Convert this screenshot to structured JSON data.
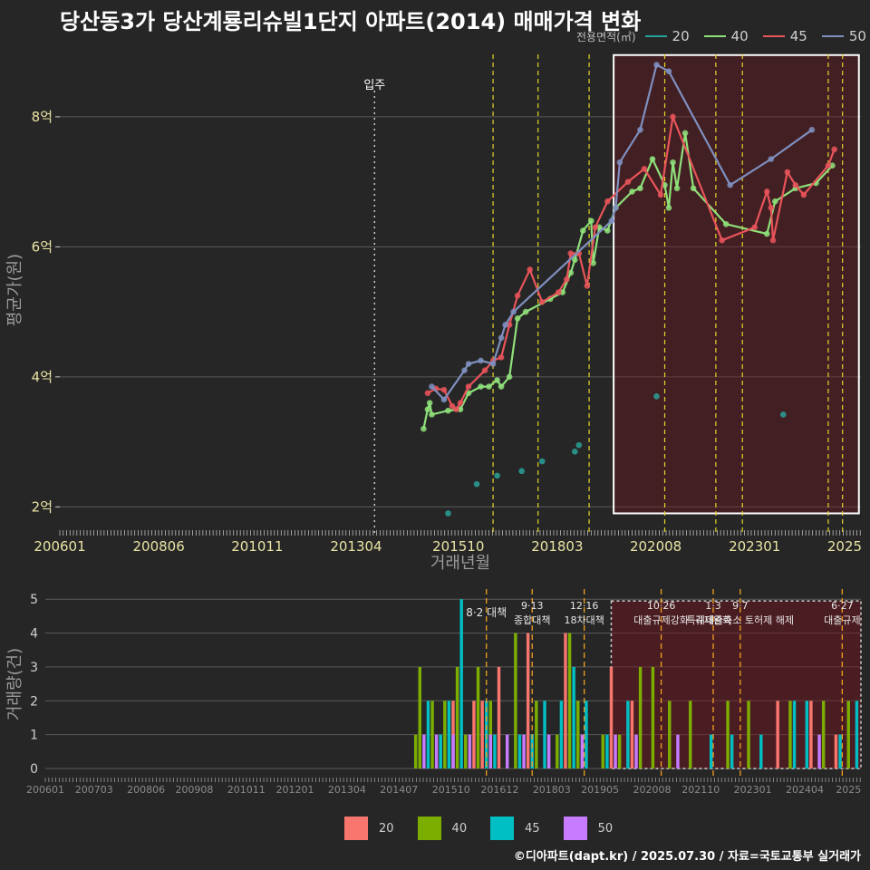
{
  "title": "당산동3가 당산계룡리슈빌1단지 아파트(2014) 매매가격 변화",
  "footer": "©디아파트(dapt.kr) / 2025.07.30 / 자료=국토교통부 실거래가",
  "legend_price": {
    "title": "전용면적(㎡)",
    "items": [
      {
        "label": "20",
        "color": "#2aa198"
      },
      {
        "label": "40",
        "color": "#8fe07a"
      },
      {
        "label": "45",
        "color": "#e8545a"
      },
      {
        "label": "50",
        "color": "#7f8fbf"
      }
    ]
  },
  "legend_volume": {
    "items": [
      {
        "label": "20",
        "color": "#f8766d"
      },
      {
        "label": "40",
        "color": "#7cae00"
      },
      {
        "label": "45",
        "color": "#00bfc4"
      },
      {
        "label": "50",
        "color": "#c77cff"
      }
    ]
  },
  "chart_data": [
    {
      "type": "line",
      "title": "당산동3가 당산계룡리슈빌1단지 아파트(2014) 매매가격 변화",
      "xlabel": "거래년월",
      "ylabel": "평균가(원)",
      "x_ticks": [
        "200601",
        "200806",
        "201011",
        "201304",
        "201510",
        "201803",
        "202008",
        "202301",
        "2025"
      ],
      "y_ticks": [
        {
          "v": 2,
          "label": "2억"
        },
        {
          "v": 4,
          "label": "4억"
        },
        {
          "v": 6,
          "label": "6억"
        },
        {
          "v": 8,
          "label": "8억"
        }
      ],
      "ylim": [
        1.6,
        9.1
      ],
      "xlim": [
        2006.0,
        2025.6
      ],
      "move_in": {
        "x": 2013.7,
        "label": "입주"
      },
      "policy_lines": [
        2016.6,
        2017.7,
        2018.95,
        2020.8,
        2022.05,
        2022.7,
        2024.8,
        2025.15
      ],
      "highlight": {
        "x0": 2019.55,
        "x1": 2025.55,
        "y0": 1.9,
        "y1": 8.95
      },
      "series": [
        {
          "name": "20",
          "points": [
            [
              2016.2,
              2.35
            ],
            [
              2016.7,
              2.48
            ],
            [
              2017.3,
              2.55
            ],
            [
              2017.8,
              2.7
            ],
            [
              2018.6,
              2.85
            ],
            [
              2018.7,
              2.95
            ],
            [
              2015.5,
              1.9
            ],
            [
              2020.6,
              3.7
            ],
            [
              2023.7,
              3.42
            ]
          ],
          "line": false
        },
        {
          "name": "40",
          "points": [
            [
              2014.9,
              3.2
            ],
            [
              2015.0,
              3.5
            ],
            [
              2015.05,
              3.6
            ],
            [
              2015.1,
              3.42
            ],
            [
              2015.5,
              3.48
            ],
            [
              2015.8,
              3.5
            ],
            [
              2016.0,
              3.75
            ],
            [
              2016.3,
              3.85
            ],
            [
              2016.5,
              3.85
            ],
            [
              2016.7,
              3.95
            ],
            [
              2016.8,
              3.85
            ],
            [
              2017.0,
              4.0
            ],
            [
              2017.2,
              4.9
            ],
            [
              2017.4,
              5.0
            ],
            [
              2018.0,
              5.2
            ],
            [
              2018.3,
              5.3
            ],
            [
              2018.5,
              5.6
            ],
            [
              2018.6,
              5.8
            ],
            [
              2018.8,
              6.25
            ],
            [
              2019.0,
              6.4
            ],
            [
              2019.05,
              5.75
            ],
            [
              2019.2,
              6.3
            ],
            [
              2019.4,
              6.25
            ],
            [
              2019.6,
              6.6
            ],
            [
              2020.0,
              6.85
            ],
            [
              2020.2,
              6.9
            ],
            [
              2020.5,
              7.35
            ],
            [
              2020.8,
              6.95
            ],
            [
              2021.0,
              7.3
            ],
            [
              2021.5,
              6.9
            ],
            [
              2022.3,
              6.35
            ],
            [
              2023.3,
              6.2
            ],
            [
              2023.5,
              6.7
            ],
            [
              2024.0,
              6.9
            ],
            [
              2024.5,
              6.98
            ],
            [
              2024.9,
              7.25
            ],
            [
              2020.9,
              6.6
            ],
            [
              2021.1,
              6.9
            ],
            [
              2021.3,
              7.75
            ]
          ],
          "line": true
        },
        {
          "name": "45",
          "points": [
            [
              2015.0,
              3.75
            ],
            [
              2015.2,
              3.82
            ],
            [
              2015.4,
              3.8
            ],
            [
              2015.6,
              3.55
            ],
            [
              2015.7,
              3.5
            ],
            [
              2015.8,
              3.6
            ],
            [
              2016.0,
              3.85
            ],
            [
              2016.4,
              4.1
            ],
            [
              2016.6,
              4.25
            ],
            [
              2016.8,
              4.3
            ],
            [
              2017.0,
              4.8
            ],
            [
              2017.2,
              5.25
            ],
            [
              2017.5,
              5.65
            ],
            [
              2017.8,
              5.15
            ],
            [
              2018.2,
              5.3
            ],
            [
              2018.4,
              5.5
            ],
            [
              2018.5,
              5.9
            ],
            [
              2018.7,
              5.9
            ],
            [
              2018.9,
              5.4
            ],
            [
              2019.1,
              6.3
            ],
            [
              2019.4,
              6.7
            ],
            [
              2019.9,
              7.0
            ],
            [
              2020.3,
              7.2
            ],
            [
              2020.7,
              6.8
            ],
            [
              2021.0,
              8.0
            ],
            [
              2022.2,
              6.1
            ],
            [
              2023.0,
              6.3
            ],
            [
              2023.3,
              6.85
            ],
            [
              2023.4,
              6.6
            ],
            [
              2023.8,
              7.15
            ],
            [
              2024.0,
              6.95
            ],
            [
              2024.2,
              6.8
            ],
            [
              2024.8,
              7.25
            ],
            [
              2024.95,
              7.5
            ],
            [
              2023.45,
              6.1
            ]
          ],
          "line": true
        },
        {
          "name": "50",
          "points": [
            [
              2015.1,
              3.85
            ],
            [
              2015.4,
              3.65
            ],
            [
              2015.9,
              4.1
            ],
            [
              2016.0,
              4.2
            ],
            [
              2016.3,
              4.25
            ],
            [
              2016.6,
              4.2
            ],
            [
              2016.8,
              4.6
            ],
            [
              2016.9,
              4.8
            ],
            [
              2017.1,
              5.0
            ],
            [
              2019.5,
              6.4
            ],
            [
              2019.6,
              6.6
            ],
            [
              2019.7,
              7.3
            ],
            [
              2020.2,
              7.8
            ],
            [
              2020.6,
              8.8
            ],
            [
              2020.9,
              8.7
            ],
            [
              2022.4,
              6.95
            ],
            [
              2023.4,
              7.35
            ],
            [
              2024.4,
              7.8
            ]
          ],
          "line": true
        }
      ]
    },
    {
      "type": "bar",
      "xlabel": "거래년월",
      "ylabel": "거래량(건)",
      "ylim": [
        0,
        5.3
      ],
      "x_ticks": [
        "200601",
        "200703",
        "200806",
        "200908",
        "201011",
        "201201",
        "201304",
        "201407",
        "201510",
        "201612",
        "201803",
        "201905",
        "202008",
        "202110",
        "202301",
        "202404",
        "2025"
      ],
      "y_ticks": [
        0,
        1,
        2,
        3,
        4,
        5
      ],
      "events": [
        {
          "x": 2016.6,
          "label": "8·2 대책"
        },
        {
          "x": 2017.7,
          "label": "9·13 종합대책"
        },
        {
          "x": 2018.95,
          "label": "12·16 18차대책"
        },
        {
          "x": 2020.8,
          "label": "10·26 대출규제강화"
        },
        {
          "x": 2022.05,
          "label": "1·3 규제완화"
        },
        {
          "x": 2022.7,
          "label": "9·7 특례대출축소 토허제 해제"
        },
        {
          "x": 2025.15,
          "label": "6·27 대출규제"
        }
      ],
      "series": [
        {
          "name": "20",
          "bars": [
            [
              2015.8,
              2
            ],
            [
              2016.3,
              2
            ],
            [
              2016.5,
              2
            ],
            [
              2016.9,
              3
            ],
            [
              2017.6,
              4
            ],
            [
              2018.5,
              4
            ],
            [
              2019.6,
              3
            ],
            [
              2020.1,
              2
            ],
            [
              2023.6,
              2
            ],
            [
              2024.4,
              2
            ],
            [
              2025.0,
              1
            ]
          ]
        },
        {
          "name": "40",
          "bars": [
            [
              2014.9,
              1
            ],
            [
              2015.0,
              3
            ],
            [
              2015.3,
              2
            ],
            [
              2015.6,
              2
            ],
            [
              2015.9,
              3
            ],
            [
              2016.1,
              1
            ],
            [
              2016.4,
              3
            ],
            [
              2016.7,
              2
            ],
            [
              2017.3,
              4
            ],
            [
              2017.8,
              2
            ],
            [
              2018.3,
              1
            ],
            [
              2018.6,
              4
            ],
            [
              2018.8,
              2
            ],
            [
              2019.4,
              1
            ],
            [
              2019.8,
              1
            ],
            [
              2020.3,
              3
            ],
            [
              2020.6,
              3
            ],
            [
              2021.0,
              2
            ],
            [
              2021.5,
              2
            ],
            [
              2022.4,
              2
            ],
            [
              2022.9,
              2
            ],
            [
              2023.9,
              2
            ],
            [
              2024.7,
              2
            ],
            [
              2025.3,
              2
            ]
          ]
        },
        {
          "name": "45",
          "bars": [
            [
              2015.2,
              2
            ],
            [
              2015.5,
              1
            ],
            [
              2015.7,
              2
            ],
            [
              2016.0,
              5
            ],
            [
              2016.6,
              2
            ],
            [
              2016.8,
              1
            ],
            [
              2017.4,
              1
            ],
            [
              2017.7,
              1
            ],
            [
              2018.0,
              2
            ],
            [
              2018.4,
              2
            ],
            [
              2018.7,
              3
            ],
            [
              2019.0,
              2
            ],
            [
              2019.5,
              1
            ],
            [
              2020.0,
              2
            ],
            [
              2022.0,
              1
            ],
            [
              2022.5,
              1
            ],
            [
              2023.2,
              1
            ],
            [
              2024.0,
              2
            ],
            [
              2024.3,
              2
            ],
            [
              2025.1,
              1
            ],
            [
              2025.5,
              2
            ]
          ]
        },
        {
          "name": "50",
          "bars": [
            [
              2015.1,
              1
            ],
            [
              2015.4,
              1
            ],
            [
              2015.8,
              1
            ],
            [
              2016.2,
              1
            ],
            [
              2016.7,
              1
            ],
            [
              2017.1,
              1
            ],
            [
              2017.5,
              1
            ],
            [
              2018.1,
              1
            ],
            [
              2018.9,
              1
            ],
            [
              2019.7,
              1
            ],
            [
              2020.2,
              1
            ],
            [
              2021.2,
              1
            ],
            [
              2024.6,
              1
            ]
          ]
        }
      ]
    }
  ]
}
